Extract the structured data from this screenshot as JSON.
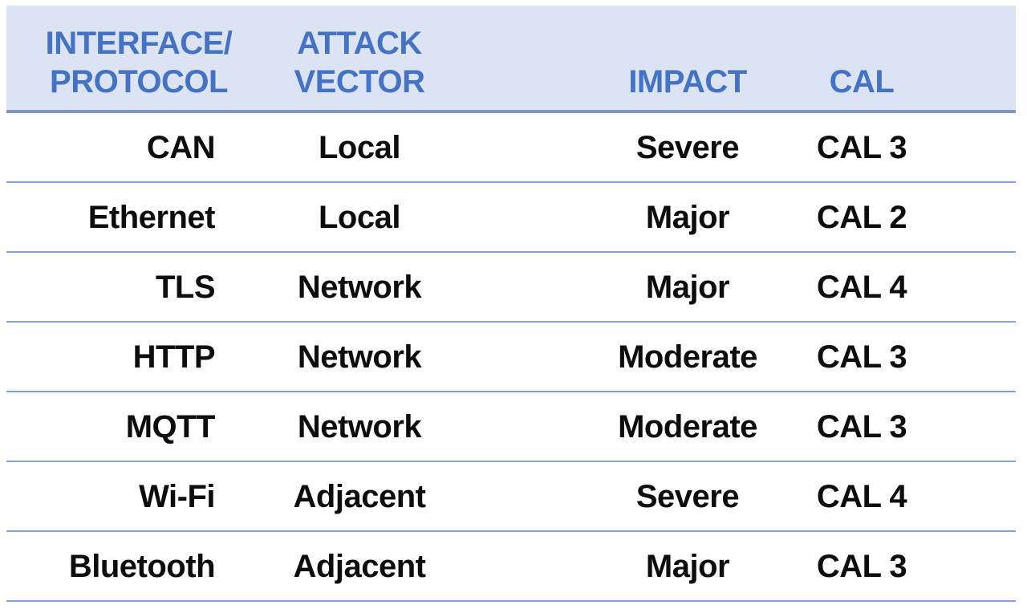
{
  "table": {
    "header": {
      "columns": [
        {
          "id": "interface-protocol",
          "lines": [
            "INTERFACE/",
            "PROTOCOL"
          ]
        },
        {
          "id": "attack-vector",
          "lines": [
            "ATTACK",
            "VECTOR"
          ]
        },
        {
          "id": "impact",
          "lines": [
            "IMPACT"
          ]
        },
        {
          "id": "cal",
          "lines": [
            "CAL"
          ]
        }
      ]
    },
    "rows": [
      {
        "protocol": "CAN",
        "vector": "Local",
        "impact": "Severe",
        "cal": "CAL 3"
      },
      {
        "protocol": "Ethernet",
        "vector": "Local",
        "impact": "Major",
        "cal": "CAL 2"
      },
      {
        "protocol": "TLS",
        "vector": "Network",
        "impact": "Major",
        "cal": "CAL 4"
      },
      {
        "protocol": "HTTP",
        "vector": "Network",
        "impact": "Moderate",
        "cal": "CAL 3"
      },
      {
        "protocol": "MQTT",
        "vector": "Network",
        "impact": "Moderate",
        "cal": "CAL 3"
      },
      {
        "protocol": "Wi-Fi",
        "vector": "Adjacent",
        "impact": "Severe",
        "cal": "CAL 4"
      },
      {
        "protocol": "Bluetooth",
        "vector": "Adjacent",
        "impact": "Major",
        "cal": "CAL 3"
      }
    ]
  },
  "chart_data": {
    "type": "table",
    "columns": [
      "INTERFACE/PROTOCOL",
      "ATTACK VECTOR",
      "IMPACT",
      "CAL"
    ],
    "rows": [
      [
        "CAN",
        "Local",
        "Severe",
        "CAL 3"
      ],
      [
        "Ethernet",
        "Local",
        "Major",
        "CAL 2"
      ],
      [
        "TLS",
        "Network",
        "Major",
        "CAL 4"
      ],
      [
        "HTTP",
        "Network",
        "Moderate",
        "CAL 3"
      ],
      [
        "MQTT",
        "Network",
        "Moderate",
        "CAL 3"
      ],
      [
        "Wi-Fi",
        "Adjacent",
        "Severe",
        "CAL 4"
      ],
      [
        "Bluetooth",
        "Adjacent",
        "Major",
        "CAL 3"
      ]
    ]
  },
  "colors": {
    "header_background": "#dce4f3",
    "header_text": "#4472c4",
    "header_border": "#8294c0",
    "row_separator": "#85a2d6",
    "body_text": "#0d0d0d",
    "page_background": "#ffffff"
  }
}
